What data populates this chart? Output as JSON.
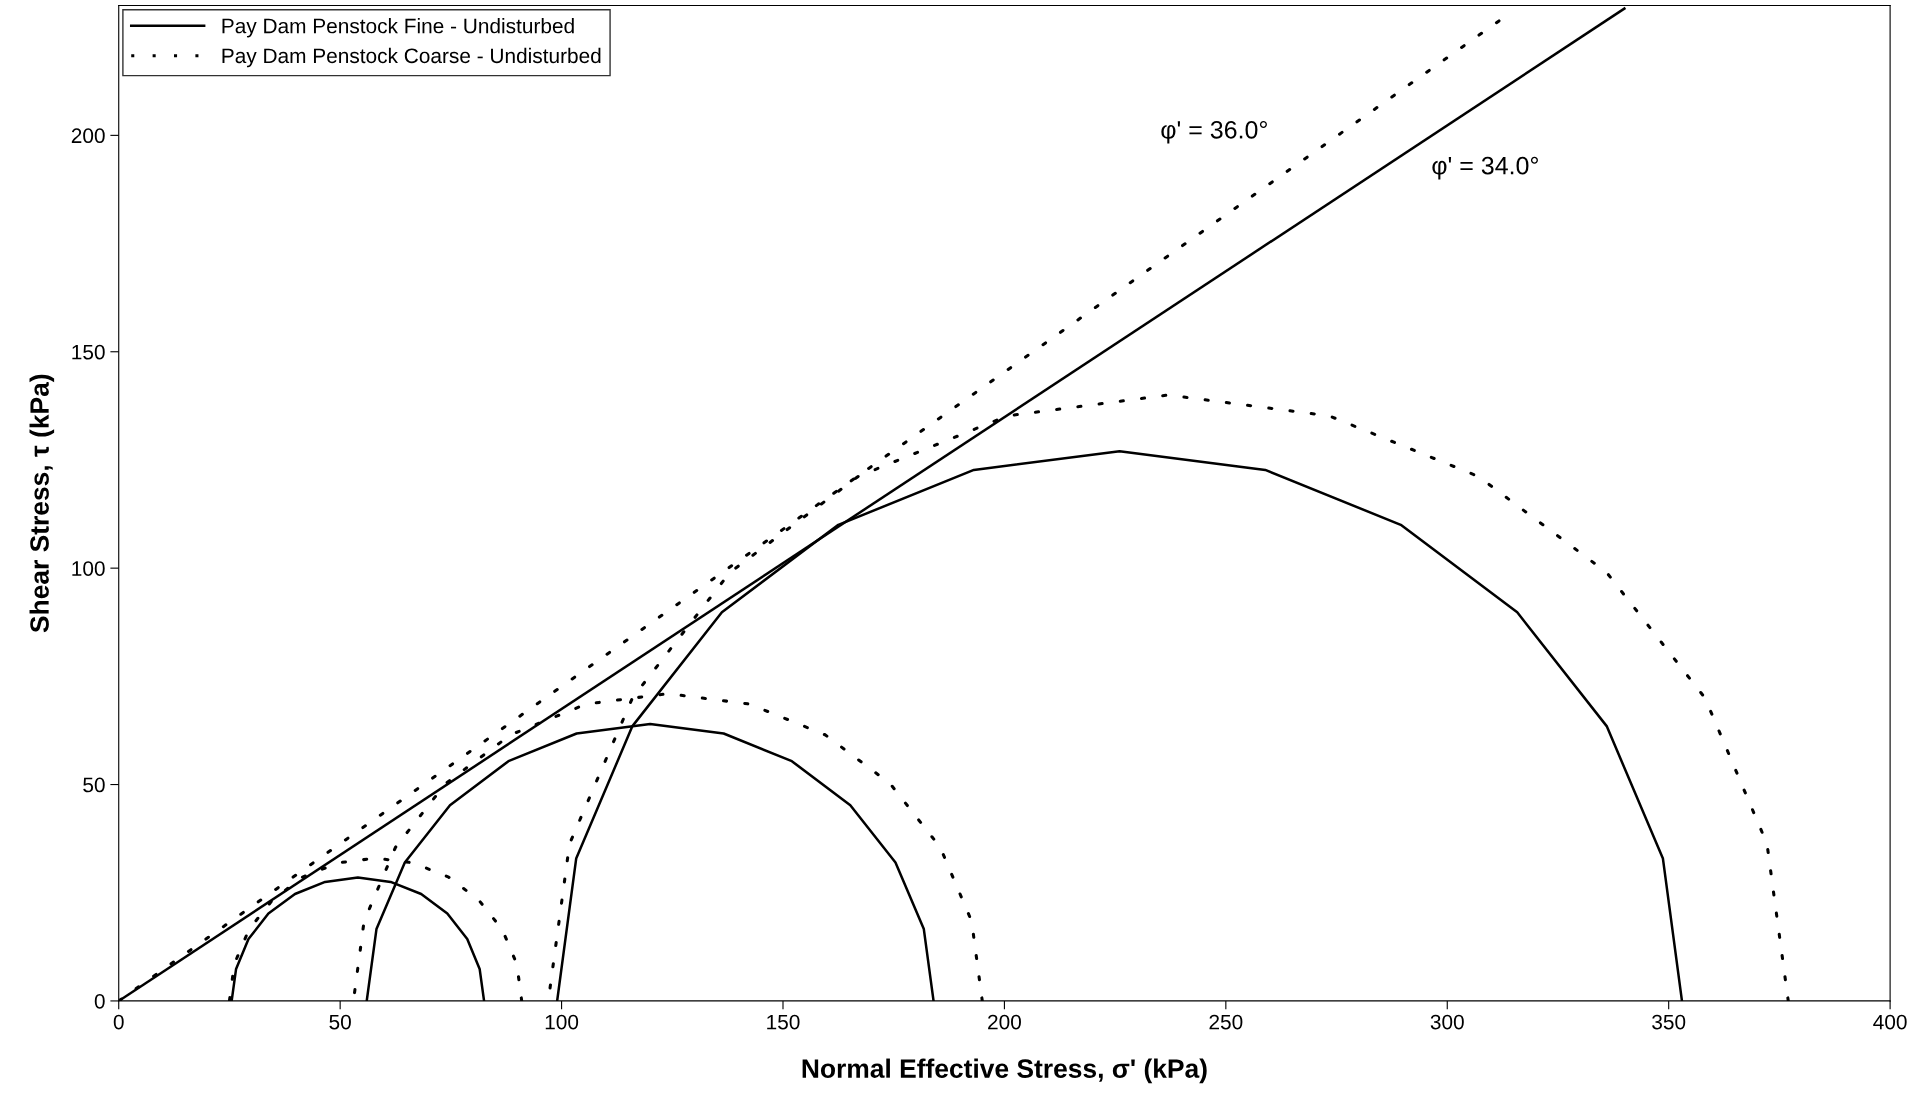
{
  "chart_data": {
    "type": "line",
    "xlabel": "Normal Effective Stress, σ' (kPa)",
    "ylabel": "Shear Stress, τ (kPa)",
    "xlim": [
      0,
      400
    ],
    "xticks": [
      0,
      50,
      100,
      150,
      200,
      250,
      300,
      350,
      400
    ],
    "ylim": [
      0,
      230
    ],
    "yticks": [
      0,
      50,
      100,
      150,
      200
    ],
    "grid": false,
    "legend": "top left",
    "marker": "none",
    "series": [
      {
        "name": "Pay Dam Penstock Fine - Undisturbed",
        "color": "#000000",
        "line_style": "solid",
        "x": [
          0,
          340
        ],
        "values": [
          0,
          229.3
        ]
      },
      {
        "color": "#000000",
        "line_style": "solid",
        "x": [
          82.5,
          81.5,
          78.7,
          74.2,
          68.3,
          61.4,
          54,
          46.6,
          39.8,
          33.8,
          29.3,
          26.5,
          25.5
        ],
        "values": [
          0,
          7.4,
          14.3,
          20.2,
          24.7,
          27.5,
          28.5,
          27.5,
          24.7,
          20.2,
          14.3,
          7.4,
          0
        ]
      },
      {
        "color": "#000000",
        "line_style": "solid",
        "x": [
          184,
          181.8,
          175.4,
          165.2,
          152,
          136.6,
          120,
          103.4,
          88,
          74.8,
          64.6,
          58.2,
          56
        ],
        "values": [
          0,
          16.6,
          32,
          45.2,
          55.4,
          61.8,
          64,
          61.8,
          55.4,
          45.2,
          32,
          16.6,
          0
        ]
      },
      {
        "color": "#000000",
        "line_style": "solid",
        "x": [
          353,
          348.7,
          336,
          315.8,
          289.5,
          258.9,
          226,
          193.1,
          162.5,
          136.2,
          116,
          103.3,
          99
        ],
        "values": [
          0,
          32.9,
          63.5,
          89.8,
          110,
          122.7,
          127,
          122.7,
          110,
          89.8,
          63.5,
          32.9,
          0
        ]
      },
      {
        "name": "Pay Dam Penstock Coarse - Undisturbed",
        "color": "#000000",
        "line_style": "dotted",
        "x": [
          0,
          313
        ],
        "values": [
          0,
          227.4
        ]
      },
      {
        "color": "#000000",
        "line_style": "dotted",
        "x": [
          91,
          89.9,
          86.6,
          81.3,
          74.5,
          66.5,
          58,
          49.5,
          41.5,
          34.7,
          29.4,
          26.1,
          25
        ],
        "values": [
          0,
          8.5,
          16.5,
          23.3,
          28.6,
          31.9,
          33,
          31.9,
          28.6,
          23.3,
          16.5,
          8.5,
          0
        ]
      },
      {
        "color": "#000000",
        "line_style": "dotted",
        "x": [
          195,
          192.6,
          185.5,
          174.2,
          159.5,
          142.4,
          124,
          105.6,
          88.5,
          73.8,
          62.5,
          55.4,
          53
        ],
        "values": [
          0,
          18.4,
          35.5,
          50.2,
          61.5,
          68.6,
          71,
          68.6,
          61.5,
          50.2,
          35.5,
          18.4,
          0
        ]
      },
      {
        "color": "#000000",
        "line_style": "dotted",
        "x": [
          377,
          372.2,
          358.2,
          336,
          307,
          273.3,
          237,
          200.7,
          167,
          138,
          116,
          101.8,
          97
        ],
        "values": [
          0,
          36.3,
          70,
          99,
          121.2,
          135.2,
          140,
          135.2,
          121.2,
          99,
          70,
          36.3,
          0
        ]
      }
    ],
    "annotations": [
      "φ' = 36.0°",
      "φ' = 34.0°"
    ]
  }
}
